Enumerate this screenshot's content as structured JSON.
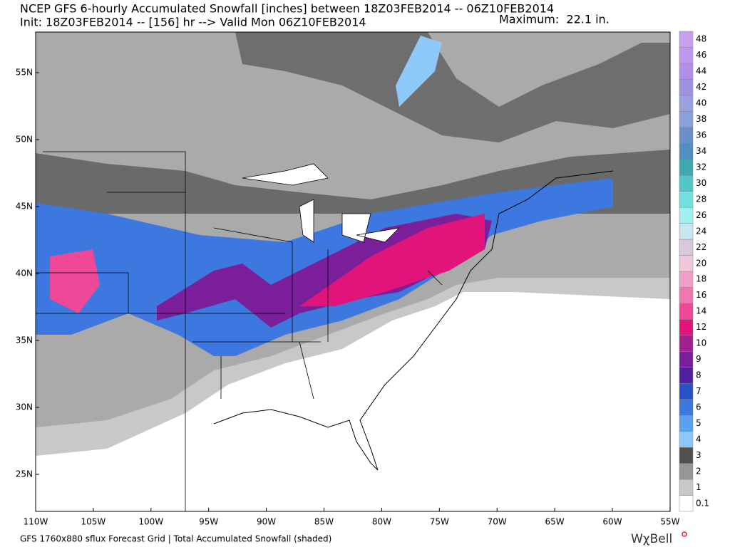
{
  "header": {
    "title": "NCEP GFS 6-hourly Accumulated Snowfall [inches] between 18Z03FEB2014 -- 06Z10FEB2014",
    "init": "Init: 18Z03FEB2014 -- [156] hr --> Valid Mon 06Z10FEB2014",
    "maximum": "Maximum:  22.1 in."
  },
  "map": {
    "latitude_labels": [
      "55N",
      "50N",
      "45N",
      "40N",
      "35N",
      "30N",
      "25N"
    ],
    "longitude_labels": [
      "110W",
      "105W",
      "100W",
      "95W",
      "90W",
      "85W",
      "80W",
      "75W",
      "70W",
      "65W",
      "60W",
      "55W"
    ]
  },
  "legend": {
    "levels": [
      0.1,
      1,
      2,
      3,
      4,
      5,
      6,
      7,
      8,
      9,
      10,
      12,
      14,
      16,
      18,
      20,
      22,
      24,
      26,
      28,
      30,
      32,
      34,
      36,
      38,
      40,
      42,
      44,
      46,
      48
    ],
    "colors": [
      "#ffffff",
      "#c8c8c8",
      "#969696",
      "#505050",
      "#8ec8f8",
      "#5aa0f0",
      "#3c78e0",
      "#2850c8",
      "#5020a0",
      "#7a1e9a",
      "#a0208c",
      "#e0147a",
      "#f04898",
      "#f078b0",
      "#f0a0c8",
      "#f0c8dc",
      "#d8c8dc",
      "#c8e8f0",
      "#a0f0f0",
      "#70e0e0",
      "#50c8c8",
      "#40a8b0",
      "#5090c0",
      "#6a90c8",
      "#8aa0d8",
      "#9aa0e0",
      "#a090e0",
      "#b090e8",
      "#c098f0",
      "#c8a0f0"
    ]
  },
  "footer": {
    "caption": "GFS 1760x880 sflux Forecast Grid | Total Accumulated Snowfall (shaded)",
    "logo": "WχBell"
  }
}
